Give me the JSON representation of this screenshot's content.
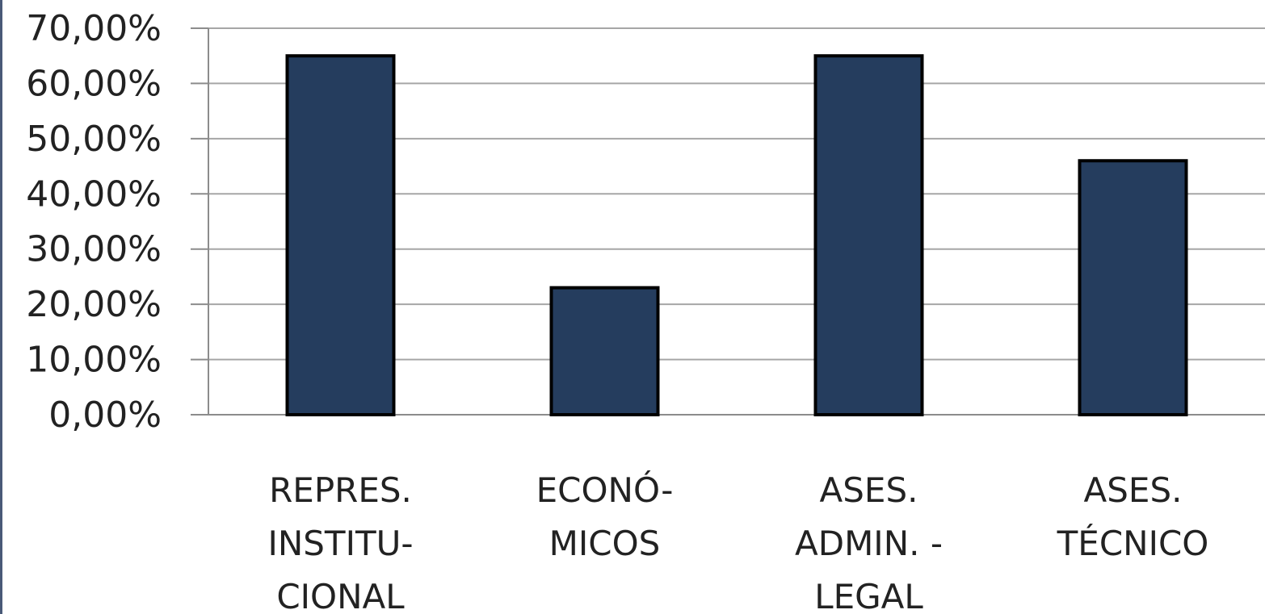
{
  "chart_data": {
    "type": "bar",
    "categories": [
      [
        "REPRES.",
        "INSTITU-",
        "CIONAL"
      ],
      [
        "ECONÓ-",
        "MICOS"
      ],
      [
        "ASES.",
        "ADMIN. -",
        "LEGAL"
      ],
      [
        "ASES.",
        "TÉCNICO"
      ]
    ],
    "values": [
      65.0,
      23.0,
      65.0,
      46.0
    ],
    "y_tick_labels": [
      "0,00%",
      "10,00%",
      "20,00%",
      "30,00%",
      "40,00%",
      "50,00%",
      "60,00%",
      "70,00%"
    ],
    "ylim": [
      0,
      70
    ],
    "y_step": 10,
    "grid": true,
    "legend": "none",
    "bar_color": "#253d5e",
    "bar_edge_color": "#000000"
  }
}
